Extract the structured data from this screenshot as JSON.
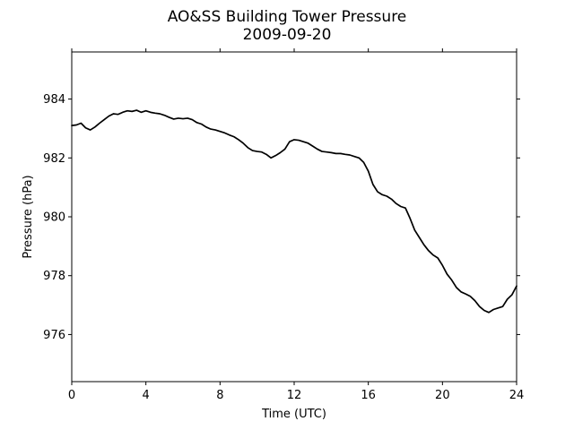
{
  "chart_data": {
    "type": "line",
    "title": "AO&SS Building Tower Pressure",
    "subtitle": "2009-09-20",
    "xlabel": "Time (UTC)",
    "ylabel": "Pressure (hPa)",
    "xlim": [
      0,
      24
    ],
    "ylim": [
      974.4,
      985.6
    ],
    "x_ticks": [
      0,
      4,
      8,
      12,
      16,
      20,
      24
    ],
    "y_ticks": [
      976,
      978,
      980,
      982,
      984
    ],
    "grid": false,
    "line_color": "#000000",
    "series": [
      {
        "x": [
          0.0,
          0.25,
          0.5,
          0.75,
          1.0,
          1.25,
          1.5,
          1.75,
          2.0,
          2.25,
          2.5,
          2.75,
          3.0,
          3.25,
          3.5,
          3.75,
          4.0,
          4.25,
          4.5,
          4.75,
          5.0,
          5.25,
          5.5,
          5.75,
          6.0,
          6.25,
          6.5,
          6.75,
          7.0,
          7.25,
          7.5,
          7.75,
          8.0,
          8.25,
          8.5,
          8.75,
          9.0,
          9.25,
          9.5,
          9.75,
          10.0,
          10.25,
          10.5,
          10.75,
          11.0,
          11.25,
          11.5,
          11.75,
          12.0,
          12.25,
          12.5,
          12.75,
          13.0,
          13.25,
          13.5,
          13.75,
          14.0,
          14.25,
          14.5,
          14.75,
          15.0,
          15.25,
          15.5,
          15.75,
          16.0,
          16.25,
          16.5,
          16.75,
          17.0,
          17.25,
          17.5,
          17.75,
          18.0,
          18.25,
          18.5,
          18.75,
          19.0,
          19.25,
          19.5,
          19.75,
          20.0,
          20.25,
          20.5,
          20.75,
          21.0,
          21.25,
          21.5,
          21.75,
          22.0,
          22.25,
          22.5,
          22.75,
          23.0,
          23.25,
          23.5,
          23.75,
          24.0
        ],
        "y": [
          983.1,
          983.12,
          983.18,
          983.02,
          982.95,
          983.05,
          983.18,
          983.3,
          983.42,
          983.5,
          983.48,
          983.55,
          983.6,
          983.58,
          983.62,
          983.55,
          983.6,
          983.55,
          983.52,
          983.5,
          983.45,
          983.38,
          983.32,
          983.35,
          983.33,
          983.35,
          983.3,
          983.2,
          983.15,
          983.05,
          982.98,
          982.95,
          982.9,
          982.85,
          982.78,
          982.72,
          982.62,
          982.5,
          982.35,
          982.25,
          982.22,
          982.2,
          982.12,
          982.0,
          982.08,
          982.18,
          982.3,
          982.55,
          982.62,
          982.6,
          982.55,
          982.5,
          982.4,
          982.3,
          982.22,
          982.2,
          982.18,
          982.15,
          982.15,
          982.12,
          982.1,
          982.05,
          982.0,
          981.85,
          981.55,
          981.1,
          980.85,
          980.75,
          980.7,
          980.6,
          980.45,
          980.35,
          980.3,
          979.95,
          979.55,
          979.3,
          979.05,
          978.85,
          978.7,
          978.6,
          978.35,
          978.05,
          977.85,
          977.6,
          977.45,
          977.38,
          977.3,
          977.15,
          976.95,
          976.82,
          976.75,
          976.85,
          976.9,
          976.95,
          977.2,
          977.35,
          977.65
        ]
      }
    ]
  }
}
